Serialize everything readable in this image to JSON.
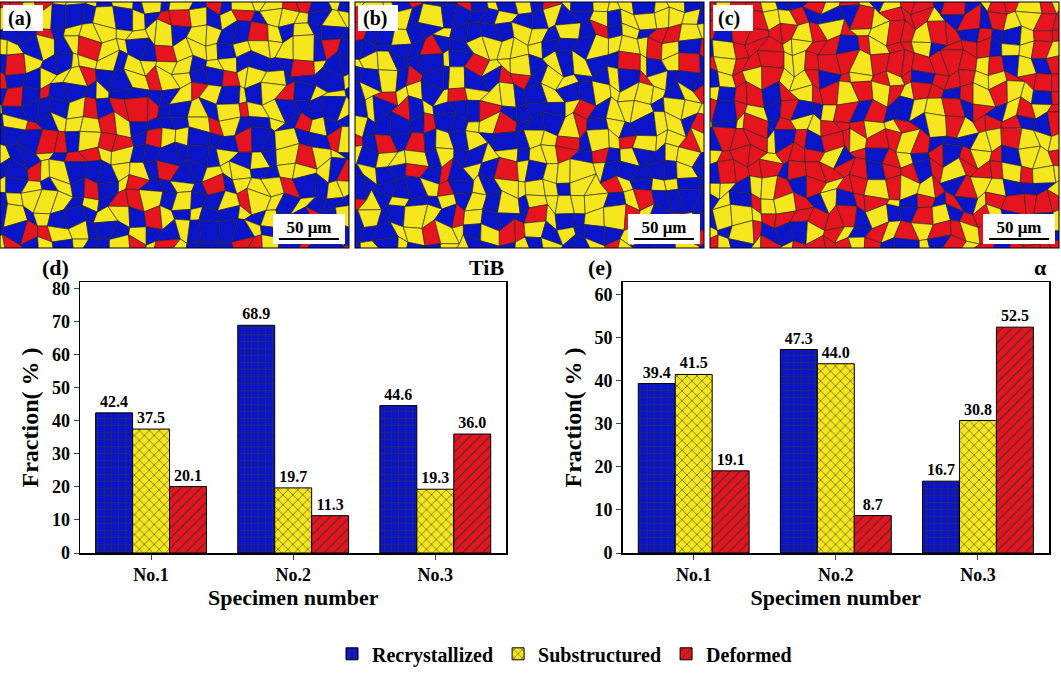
{
  "maps": [
    {
      "label": "(a)",
      "scale_bar": "50 μm"
    },
    {
      "label": "(b)",
      "scale_bar": "50 μm"
    },
    {
      "label": "(c)",
      "scale_bar": "50 μm"
    }
  ],
  "chart_data": [
    {
      "type": "bar",
      "label": "(d)",
      "title": "TiB",
      "x_label": "Specimen number",
      "y_label": "Fraction( % )",
      "categories": [
        "No.1",
        "No.2",
        "No.3"
      ],
      "series": [
        {
          "name": "Recrystallized",
          "color": "#0a14c8",
          "values": [
            42.4,
            68.9,
            44.6
          ]
        },
        {
          "name": "Substructured",
          "color": "#f5e61e",
          "values": [
            37.5,
            19.7,
            19.3
          ]
        },
        {
          "name": "Deformed",
          "color": "#e6141e",
          "values": [
            20.1,
            11.3,
            36.0
          ],
          "value_labels": [
            "20.1",
            "11.3",
            "36.0"
          ]
        }
      ],
      "ylim": [
        0,
        82
      ],
      "yticks": [
        0,
        10,
        20,
        30,
        40,
        50,
        60,
        70,
        80
      ],
      "data_labels": true,
      "legend": "bottom",
      "grid": false
    },
    {
      "type": "bar",
      "label": "(e)",
      "title": "α",
      "x_label": "Specimen number",
      "y_label": "Fraction( % )",
      "categories": [
        "No.1",
        "No.2",
        "No.3"
      ],
      "series": [
        {
          "name": "Recrystallized",
          "color": "#0a14c8",
          "values": [
            39.4,
            47.3,
            16.7
          ]
        },
        {
          "name": "Substructured",
          "color": "#f5e61e",
          "values": [
            41.5,
            44.0,
            30.8
          ],
          "value_labels": [
            "41.5",
            "44.0",
            "30.8"
          ]
        },
        {
          "name": "Deformed",
          "color": "#e6141e",
          "values": [
            19.1,
            8.7,
            52.5
          ]
        }
      ],
      "ylim": [
        0,
        63
      ],
      "yticks": [
        0,
        10,
        20,
        30,
        40,
        50,
        60
      ],
      "data_labels": true,
      "legend": "bottom",
      "grid": false
    }
  ]
}
